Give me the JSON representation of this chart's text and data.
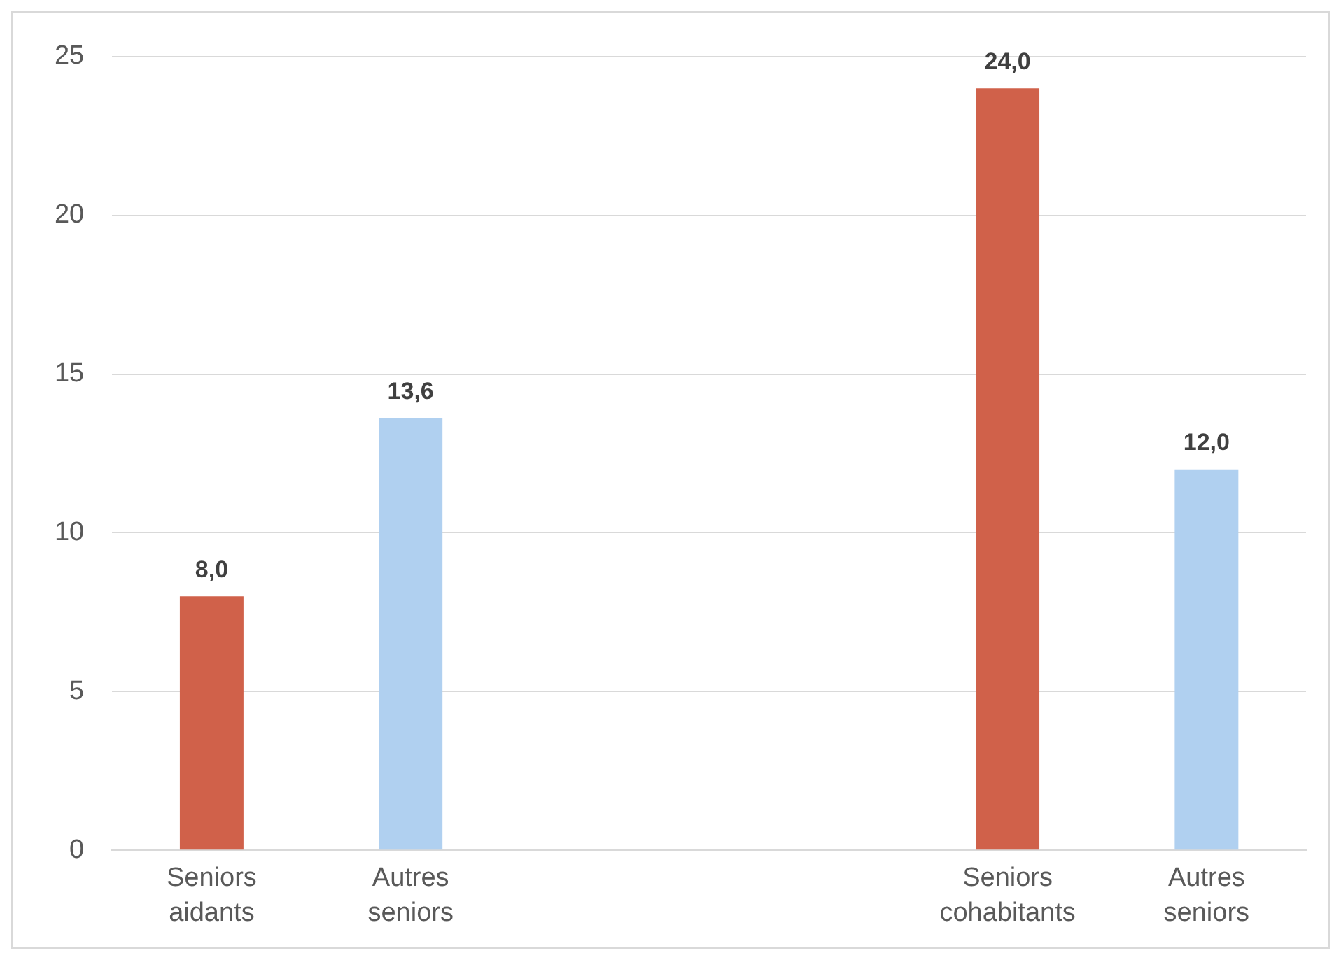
{
  "chart_data": {
    "type": "bar",
    "categories": [
      "Seniors aidants",
      "Autres seniors",
      null,
      null,
      "Seniors cohabitants",
      "Autres seniors"
    ],
    "values": [
      8.0,
      13.6,
      null,
      null,
      24.0,
      12.0
    ],
    "colors": [
      "#d0614a",
      "#b0d0f0",
      "#d0614a",
      "#b0d0f0",
      "#d0614a",
      "#b0d0f0"
    ],
    "value_labels": [
      "8,0",
      "13,6",
      null,
      null,
      "24,0",
      "12,0"
    ],
    "ylim": [
      0,
      25
    ],
    "yticks": [
      0,
      5,
      10,
      15,
      20,
      25
    ],
    "grid": "y",
    "legend": false
  }
}
